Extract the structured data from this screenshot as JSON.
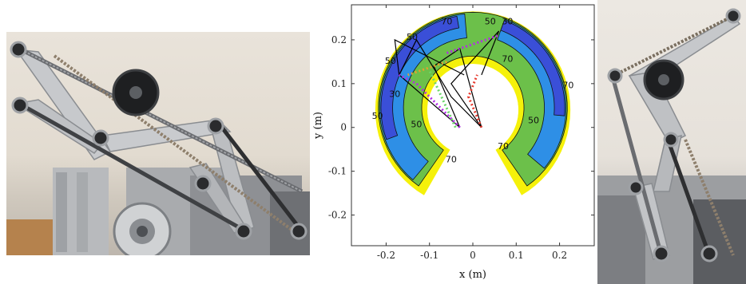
{
  "figure": {
    "left_photo": {
      "icon": "robot-arm-photo-icon"
    },
    "right_photo": {
      "icon": "robot-leg-photo-icon"
    }
  },
  "chart_data": {
    "type": "contour",
    "title": "",
    "xlabel": "x (m)",
    "ylabel": "y (m)",
    "xlim": [
      -0.28,
      0.28
    ],
    "ylim": [
      -0.27,
      0.28
    ],
    "xticks": [
      -0.2,
      -0.1,
      0,
      0.1,
      0.2
    ],
    "xtick_labels": [
      "-0.2",
      "-0.1",
      "0",
      "0.1",
      "0.2"
    ],
    "yticks": [
      -0.2,
      -0.1,
      0,
      0.1,
      0.2
    ],
    "ytick_labels": [
      "-0.2",
      "-0.1",
      "0",
      "0.1",
      "0.2"
    ],
    "contour_levels": [
      30,
      50,
      70
    ],
    "region_colors": {
      "30": "#3a4fd8",
      "50": "#2e8fe6",
      "70": "#6cc04a",
      "outer": "#f5f10a"
    },
    "contour_labels": [
      {
        "text": "70",
        "x": -0.06,
        "y": 0.235
      },
      {
        "text": "50",
        "x": 0.04,
        "y": 0.235
      },
      {
        "text": "30",
        "x": 0.08,
        "y": 0.235
      },
      {
        "text": "50",
        "x": -0.14,
        "y": 0.2
      },
      {
        "text": "50",
        "x": -0.19,
        "y": 0.145
      },
      {
        "text": "30",
        "x": -0.18,
        "y": 0.07
      },
      {
        "text": "50",
        "x": -0.22,
        "y": 0.02
      },
      {
        "text": "50",
        "x": -0.13,
        "y": 0.0
      },
      {
        "text": "70",
        "x": -0.05,
        "y": -0.08
      },
      {
        "text": "70",
        "x": 0.08,
        "y": 0.15
      },
      {
        "text": "70",
        "x": 0.22,
        "y": 0.09
      },
      {
        "text": "50",
        "x": 0.14,
        "y": 0.01
      },
      {
        "text": "70",
        "x": 0.07,
        "y": -0.05
      }
    ]
  }
}
